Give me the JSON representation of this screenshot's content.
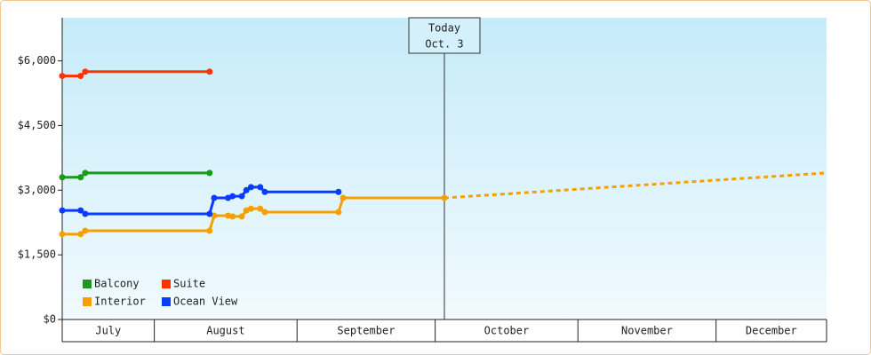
{
  "chart_data": {
    "type": "line",
    "ylim": [
      0,
      7000
    ],
    "yticks": [
      {
        "value": 0,
        "label": "$0"
      },
      {
        "value": 1500,
        "label": "$1,500"
      },
      {
        "value": 3000,
        "label": "$3,000"
      },
      {
        "value": 4500,
        "label": "$4,500"
      },
      {
        "value": 6000,
        "label": "$6,000"
      }
    ],
    "xlim": [
      0,
      166
    ],
    "xticks": [
      0,
      20,
      51,
      81,
      112,
      142,
      166
    ],
    "categories": [
      "July",
      "August",
      "September",
      "October",
      "November",
      "December"
    ],
    "series": [
      {
        "name": "Balcony",
        "color": "#1a9a1a",
        "x": [
          0,
          4,
          5,
          32
        ],
        "values": [
          3300,
          3300,
          3400,
          3400
        ]
      },
      {
        "name": "Suite",
        "color": "#ff3300",
        "x": [
          0,
          4,
          5,
          32
        ],
        "values": [
          5650,
          5650,
          5750,
          5750
        ]
      },
      {
        "name": "Interior",
        "color": "#f5a000",
        "x": [
          0,
          4,
          5,
          32,
          33,
          36,
          37,
          39,
          40,
          41,
          43,
          44,
          60,
          61,
          83
        ],
        "values": [
          1980,
          1980,
          2060,
          2060,
          2410,
          2410,
          2390,
          2390,
          2530,
          2570,
          2570,
          2490,
          2490,
          2820,
          2820
        ]
      },
      {
        "name": "Ocean View",
        "color": "#0a3cff",
        "x": [
          0,
          4,
          5,
          32,
          33,
          36,
          37,
          39,
          40,
          41,
          43,
          44,
          60
        ],
        "values": [
          2530,
          2530,
          2450,
          2450,
          2820,
          2820,
          2860,
          2860,
          3000,
          3070,
          3070,
          2960,
          2960
        ]
      }
    ],
    "forecast": {
      "color": "#f5a000",
      "x": [
        83,
        166
      ],
      "values": [
        2820,
        3400
      ]
    },
    "annotation": {
      "x": 83,
      "lines": [
        "Today",
        "Oct. 3"
      ]
    }
  }
}
